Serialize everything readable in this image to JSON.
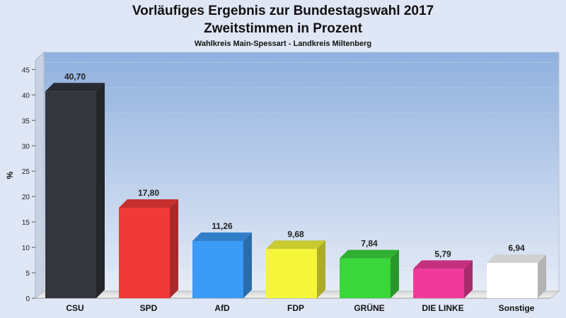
{
  "chart_data": {
    "type": "bar",
    "title": "Vorläufiges Ergebnis zur Bundestagswahl 2017",
    "subtitle": "Zweitstimmen in Prozent",
    "subtitle2": "Wahlkreis Main-Spessart - Landkreis Miltenberg",
    "ylabel": "%",
    "ylim": [
      0,
      47
    ],
    "yticks": [
      0,
      5,
      10,
      15,
      20,
      25,
      30,
      35,
      40,
      45
    ],
    "grid": true,
    "categories": [
      "CSU",
      "SPD",
      "AfD",
      "FDP",
      "GRÜNE",
      "DIE LINKE",
      "Sonstige"
    ],
    "values": [
      40.7,
      17.8,
      11.26,
      9.68,
      7.84,
      5.79,
      6.94
    ],
    "value_labels": [
      "40,70",
      "17,80",
      "11,26",
      "9,68",
      "7,84",
      "5,79",
      "6,94"
    ],
    "colors": [
      "#33363d",
      "#f03a3a",
      "#3a9af5",
      "#f5f53a",
      "#3ad63a",
      "#f03a9a",
      "#ffffff"
    ]
  }
}
